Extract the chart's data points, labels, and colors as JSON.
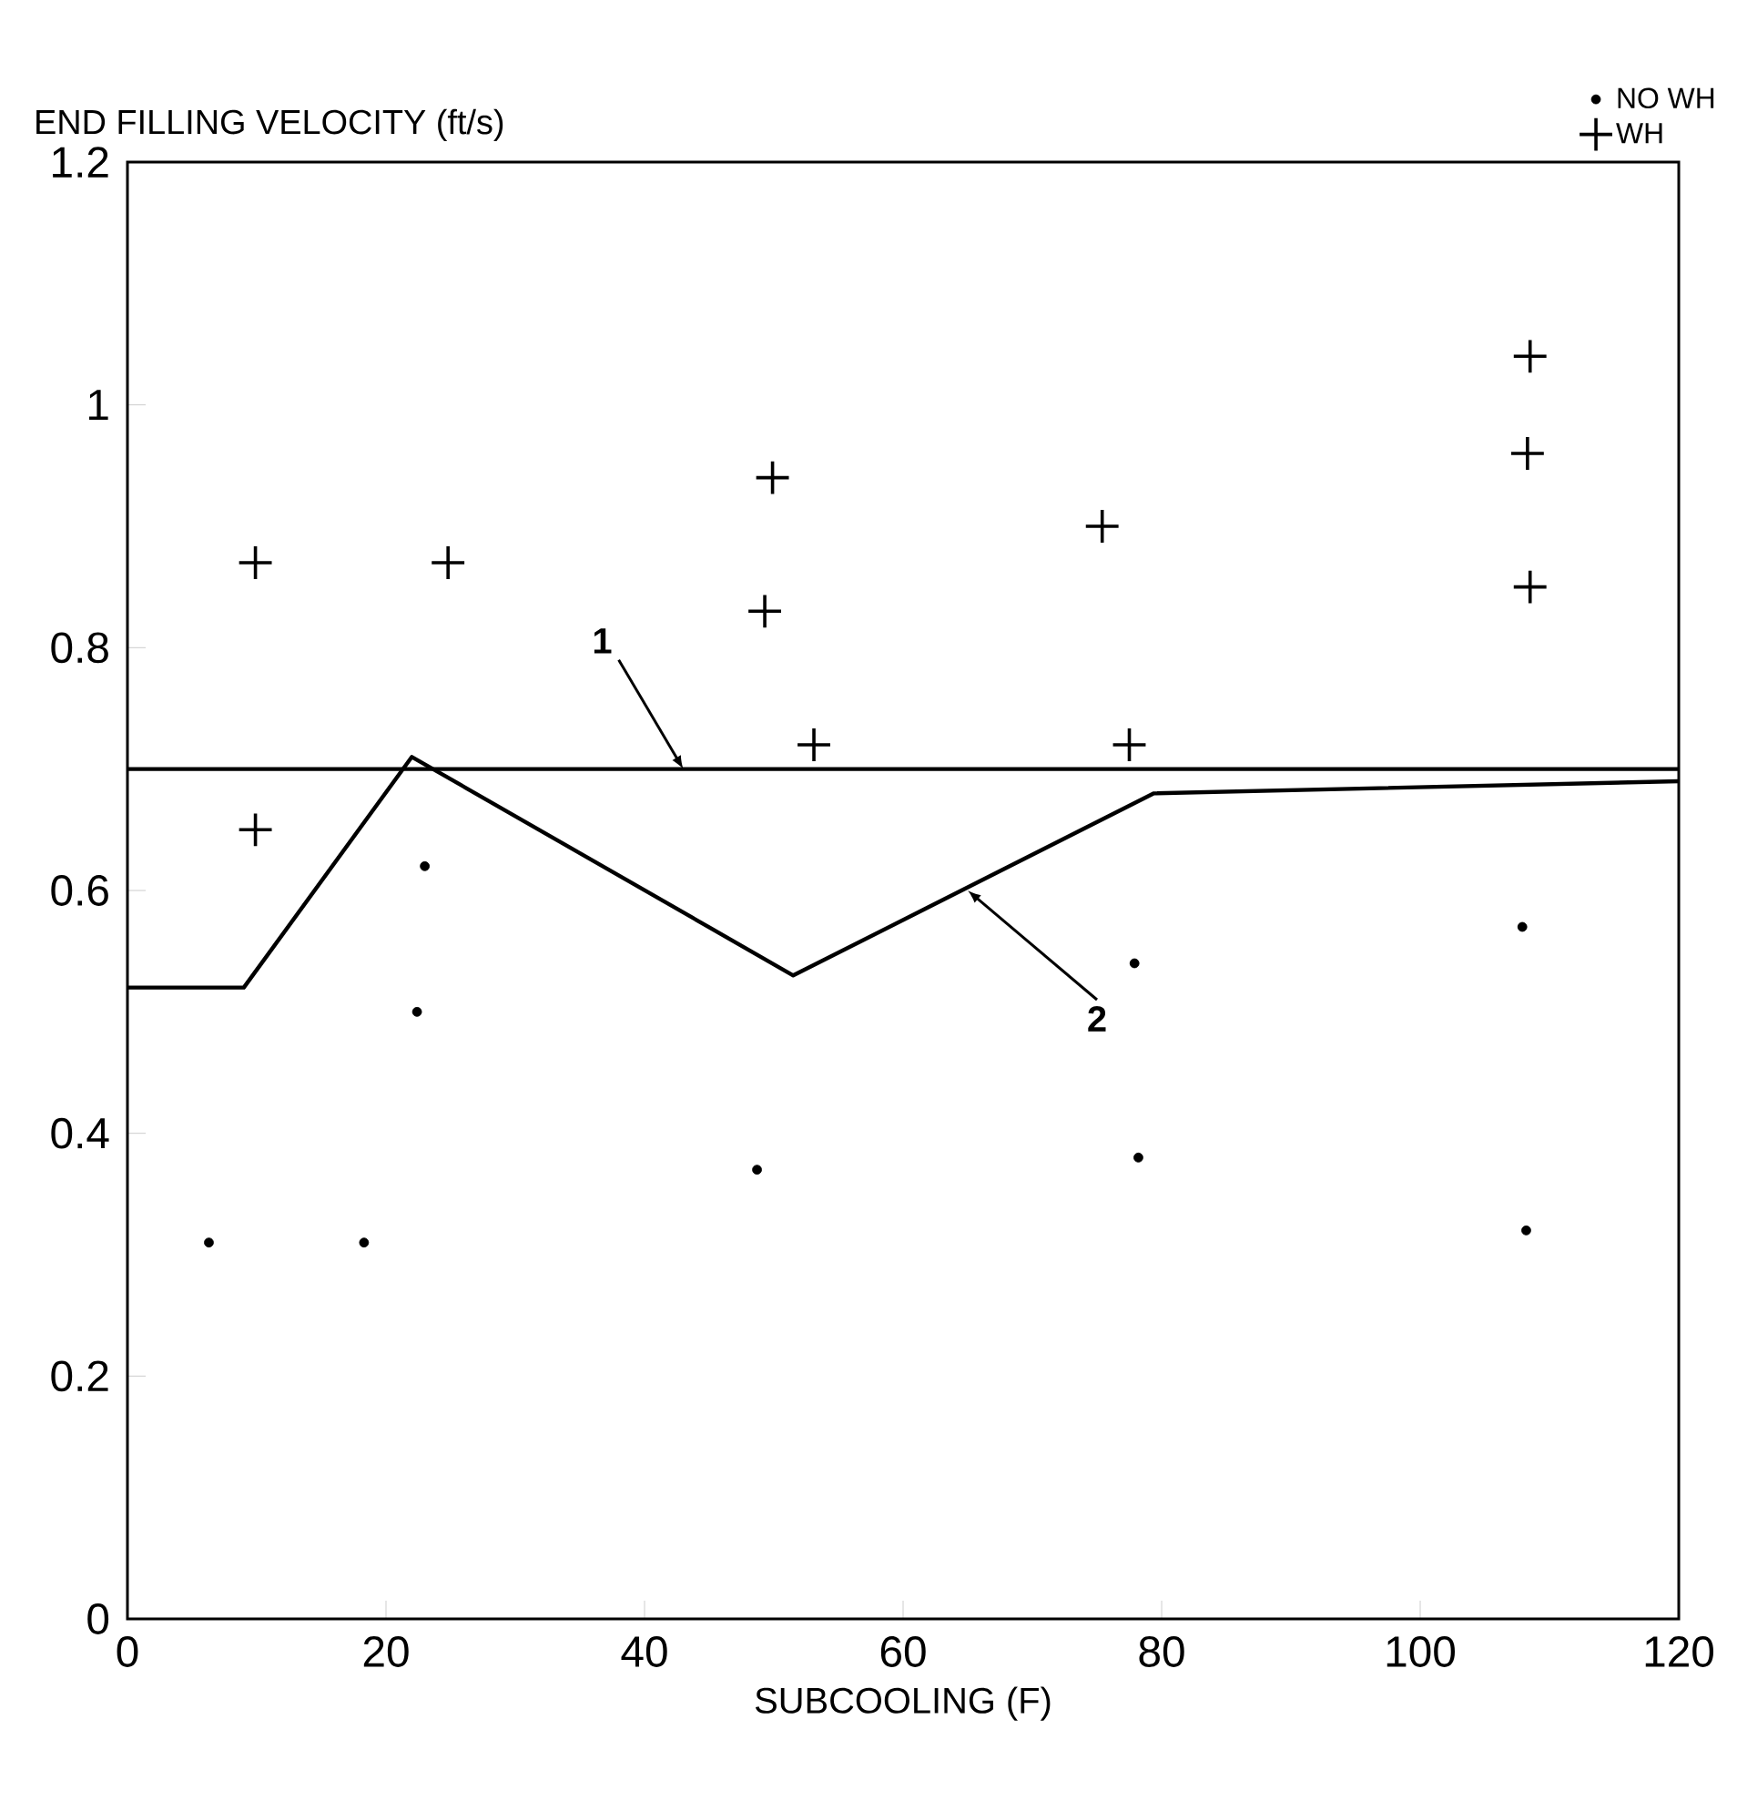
{
  "chart_data": {
    "type": "scatter",
    "ylabel": "END FILLING VELOCITY (ft/s)",
    "xlabel": "SUBCOOLING (F)",
    "xlim": [
      0,
      120
    ],
    "ylim": [
      0,
      1.2
    ],
    "xticks": [
      0,
      20,
      40,
      60,
      80,
      100,
      120
    ],
    "yticks": [
      0,
      0.2,
      0.4,
      0.6,
      0.8,
      1,
      1.2
    ],
    "grid": false,
    "legend": "top right",
    "series": [
      {
        "name": "NO WH",
        "marker": "circle",
        "color": "#000000",
        "x": [
          6.3,
          18.3,
          22.4,
          23.0,
          48.7,
          77.9,
          78.2,
          107.9,
          108.2
        ],
        "values": [
          0.31,
          0.31,
          0.5,
          0.62,
          0.37,
          0.54,
          0.38,
          0.57,
          0.32
        ]
      },
      {
        "name": "WH",
        "marker": "cross",
        "color": "#000000",
        "x": [
          9.9,
          9.9,
          24.8,
          49.9,
          49.3,
          53.1,
          75.4,
          77.5,
          108.5,
          108.3,
          108.5
        ],
        "values": [
          0.87,
          0.65,
          0.87,
          0.94,
          0.83,
          0.72,
          0.9,
          0.72,
          1.04,
          0.96,
          0.85
        ]
      },
      {
        "type": "line",
        "marker": "none",
        "color": "#000000",
        "x": [
          0,
          120
        ],
        "values": [
          0.7,
          0.7
        ]
      },
      {
        "type": "line",
        "marker": "none",
        "color": "#000000",
        "x": [
          0,
          9,
          22,
          51.5,
          79.4,
          120
        ],
        "values": [
          0.52,
          0.52,
          0.71,
          0.53,
          0.68,
          0.69
        ]
      }
    ],
    "annotations": [
      {
        "text": "1",
        "x": 43,
        "y": 0.7
      },
      {
        "text": "2",
        "x": 65,
        "y": 0.6
      }
    ]
  }
}
